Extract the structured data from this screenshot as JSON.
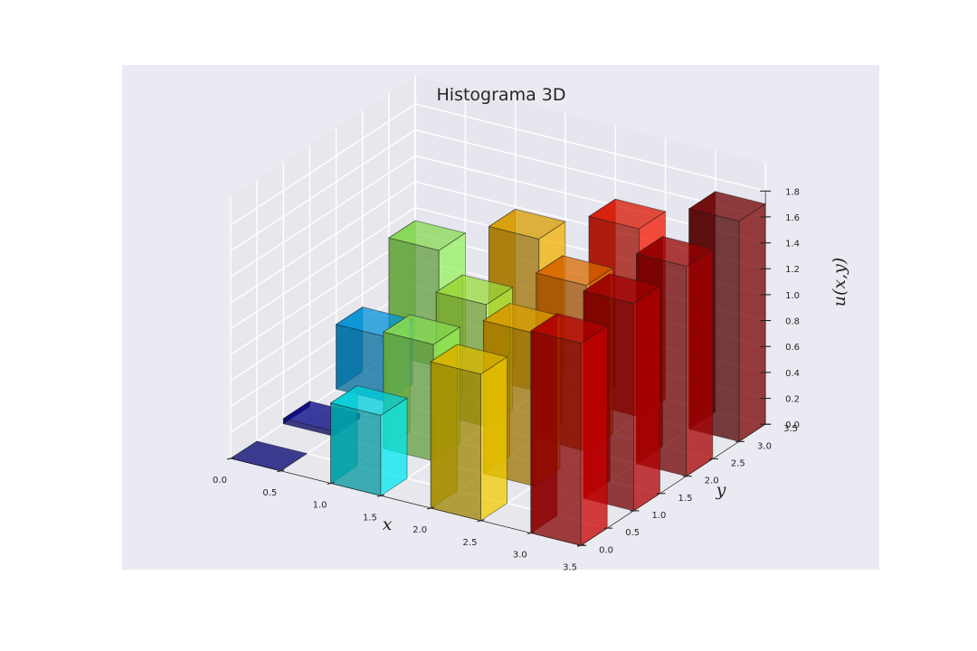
{
  "chart_data": {
    "type": "bar3d",
    "title": "Histograma 3D",
    "xlabel": "x",
    "ylabel": "y",
    "zlabel": "u(x,y)",
    "x_ticks": [
      "0.0",
      "0.5",
      "1.0",
      "1.5",
      "2.0",
      "2.5",
      "3.0",
      "3.5"
    ],
    "y_ticks": [
      "0.0",
      "0.5",
      "1.0",
      "1.5",
      "2.0",
      "2.5",
      "3.0",
      "3.5"
    ],
    "z_ticks": [
      "0.0",
      "0.2",
      "0.4",
      "0.6",
      "0.8",
      "1.0",
      "1.2",
      "1.4",
      "1.6",
      "1.8"
    ],
    "xlim": [
      0,
      3.5
    ],
    "ylim": [
      0,
      3.5
    ],
    "zlim": [
      0,
      1.8
    ],
    "bar_width": 0.5,
    "bar_depth": 0.5,
    "colormap": "jet",
    "bars": [
      {
        "x": 0.0,
        "y": 0.0,
        "z": 0.0
      },
      {
        "x": 0.0,
        "y": 1.0,
        "z": 0.04
      },
      {
        "x": 0.0,
        "y": 2.0,
        "z": 0.5
      },
      {
        "x": 0.0,
        "y": 3.0,
        "z": 0.9
      },
      {
        "x": 1.0,
        "y": 0.0,
        "z": 0.62
      },
      {
        "x": 1.0,
        "y": 1.0,
        "z": 0.9
      },
      {
        "x": 1.0,
        "y": 2.0,
        "z": 0.94
      },
      {
        "x": 1.0,
        "y": 3.0,
        "z": 1.18
      },
      {
        "x": 2.0,
        "y": 0.0,
        "z": 1.13
      },
      {
        "x": 2.0,
        "y": 1.0,
        "z": 1.18
      },
      {
        "x": 2.0,
        "y": 2.0,
        "z": 1.28
      },
      {
        "x": 2.0,
        "y": 3.0,
        "z": 1.45
      },
      {
        "x": 3.0,
        "y": 0.0,
        "z": 1.56
      },
      {
        "x": 3.0,
        "y": 1.0,
        "z": 1.6
      },
      {
        "x": 3.0,
        "y": 2.0,
        "z": 1.62
      },
      {
        "x": 3.0,
        "y": 3.0,
        "z": 1.7
      }
    ],
    "colors": {
      "pane_background": "#eaeaf2",
      "back_panes": "#e3e3e8",
      "grid": "#ffffff"
    }
  }
}
